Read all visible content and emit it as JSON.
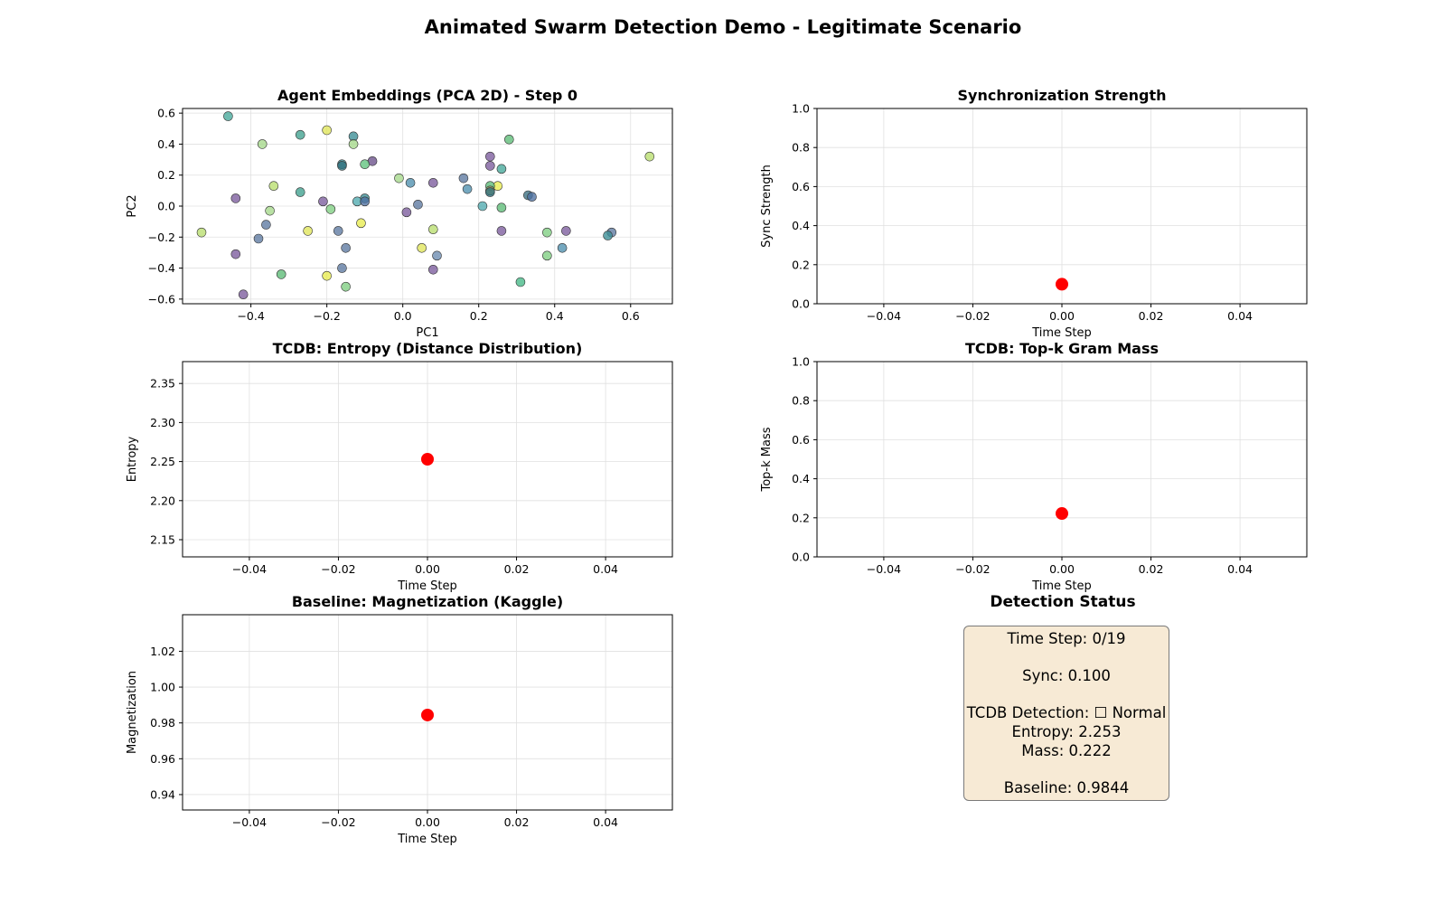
{
  "figure": {
    "suptitle": "Animated Swarm Detection Demo - Legitimate Scenario"
  },
  "status": {
    "title": "Detection Status",
    "lines": [
      "Time Step: 0/19",
      "Sync: 0.100",
      "TCDB Detection: ☐ Normal",
      "Entropy: 2.253",
      "Mass: 0.222",
      "Baseline: 0.9844"
    ]
  },
  "colors": {
    "marker": "#ff0000",
    "box_bg": "#f7ead5",
    "grid": "#e0e0e0"
  },
  "chart_data": [
    {
      "id": "embed",
      "type": "scatter",
      "title": "Agent Embeddings (PCA 2D) - Step 0",
      "xlabel": "PC1",
      "ylabel": "PC2",
      "xlim": [
        -0.58,
        0.71
      ],
      "ylim": [
        -0.63,
        0.63
      ],
      "xticks": [
        -0.4,
        -0.2,
        0.0,
        0.2,
        0.4,
        0.6
      ],
      "xtick_labels": [
        "−0.4",
        "−0.2",
        "0.0",
        "0.2",
        "0.4",
        "0.6"
      ],
      "yticks": [
        -0.6,
        -0.4,
        -0.2,
        0.0,
        0.2,
        0.4,
        0.6
      ],
      "ytick_labels": [
        "−0.6",
        "−0.4",
        "−0.2",
        "0.0",
        "0.2",
        "0.4",
        "0.6"
      ],
      "grid": true,
      "points": [
        {
          "x": -0.46,
          "y": 0.58,
          "c": "#45a89a"
        },
        {
          "x": -0.37,
          "y": 0.4,
          "c": "#a5d98a"
        },
        {
          "x": -0.27,
          "y": 0.46,
          "c": "#3fa08e"
        },
        {
          "x": -0.2,
          "y": 0.49,
          "c": "#e0e55a"
        },
        {
          "x": -0.13,
          "y": 0.45,
          "c": "#3a8d95"
        },
        {
          "x": -0.13,
          "y": 0.4,
          "c": "#a5d98a"
        },
        {
          "x": 0.28,
          "y": 0.43,
          "c": "#5cbb76"
        },
        {
          "x": 0.65,
          "y": 0.32,
          "c": "#b8de6e"
        },
        {
          "x": -0.08,
          "y": 0.29,
          "c": "#6a4f8a"
        },
        {
          "x": 0.23,
          "y": 0.32,
          "c": "#7b5b9c"
        },
        {
          "x": -0.1,
          "y": 0.27,
          "c": "#5fc27c"
        },
        {
          "x": -0.16,
          "y": 0.27,
          "c": "#3a8d95"
        },
        {
          "x": -0.16,
          "y": 0.26,
          "c": "#2f6f7c"
        },
        {
          "x": 0.23,
          "y": 0.26,
          "c": "#7b5b9c"
        },
        {
          "x": 0.26,
          "y": 0.24,
          "c": "#45a89a"
        },
        {
          "x": 0.16,
          "y": 0.18,
          "c": "#5c79a0"
        },
        {
          "x": -0.01,
          "y": 0.18,
          "c": "#a5d98a"
        },
        {
          "x": 0.08,
          "y": 0.15,
          "c": "#7b5b9c"
        },
        {
          "x": 0.02,
          "y": 0.15,
          "c": "#4e8fae"
        },
        {
          "x": -0.34,
          "y": 0.13,
          "c": "#b8de6e"
        },
        {
          "x": 0.25,
          "y": 0.13,
          "c": "#e8ec50"
        },
        {
          "x": 0.23,
          "y": 0.13,
          "c": "#5cbb76"
        },
        {
          "x": 0.17,
          "y": 0.11,
          "c": "#4e8fae"
        },
        {
          "x": 0.23,
          "y": 0.1,
          "c": "#a8a86a"
        },
        {
          "x": 0.23,
          "y": 0.09,
          "c": "#2f6f7c"
        },
        {
          "x": -0.27,
          "y": 0.09,
          "c": "#3fa08e"
        },
        {
          "x": 0.33,
          "y": 0.07,
          "c": "#3a6f82"
        },
        {
          "x": 0.34,
          "y": 0.06,
          "c": "#4d6fa0"
        },
        {
          "x": -0.44,
          "y": 0.05,
          "c": "#7b5b9c"
        },
        {
          "x": -0.1,
          "y": 0.05,
          "c": "#3a8d95"
        },
        {
          "x": -0.12,
          "y": 0.03,
          "c": "#4faab0"
        },
        {
          "x": -0.21,
          "y": 0.03,
          "c": "#7b5b9c"
        },
        {
          "x": -0.1,
          "y": 0.03,
          "c": "#4d6fa0"
        },
        {
          "x": 0.04,
          "y": 0.01,
          "c": "#5c79a0"
        },
        {
          "x": 0.21,
          "y": 0.0,
          "c": "#4faab0"
        },
        {
          "x": 0.26,
          "y": -0.01,
          "c": "#5cbb76"
        },
        {
          "x": -0.19,
          "y": -0.02,
          "c": "#7fce82"
        },
        {
          "x": -0.35,
          "y": -0.03,
          "c": "#a5d98a"
        },
        {
          "x": 0.01,
          "y": -0.04,
          "c": "#7b5b9c"
        },
        {
          "x": -0.11,
          "y": -0.11,
          "c": "#e8ec50"
        },
        {
          "x": -0.36,
          "y": -0.12,
          "c": "#5c79a0"
        },
        {
          "x": 0.08,
          "y": -0.15,
          "c": "#b8de6e"
        },
        {
          "x": -0.25,
          "y": -0.16,
          "c": "#e0e55a"
        },
        {
          "x": -0.17,
          "y": -0.16,
          "c": "#5c79a0"
        },
        {
          "x": 0.26,
          "y": -0.16,
          "c": "#7b5b9c"
        },
        {
          "x": 0.43,
          "y": -0.16,
          "c": "#7b5b9c"
        },
        {
          "x": 0.38,
          "y": -0.17,
          "c": "#7fce82"
        },
        {
          "x": 0.55,
          "y": -0.17,
          "c": "#5c79a0"
        },
        {
          "x": -0.53,
          "y": -0.17,
          "c": "#b8de6e"
        },
        {
          "x": 0.54,
          "y": -0.19,
          "c": "#3a8d95"
        },
        {
          "x": -0.38,
          "y": -0.21,
          "c": "#5c79a0"
        },
        {
          "x": 0.05,
          "y": -0.27,
          "c": "#e0e55a"
        },
        {
          "x": -0.15,
          "y": -0.27,
          "c": "#5c79a0"
        },
        {
          "x": 0.42,
          "y": -0.27,
          "c": "#4e8fae"
        },
        {
          "x": -0.44,
          "y": -0.31,
          "c": "#7b5b9c"
        },
        {
          "x": 0.09,
          "y": -0.32,
          "c": "#6a8ab0"
        },
        {
          "x": 0.38,
          "y": -0.32,
          "c": "#7fce82"
        },
        {
          "x": -0.16,
          "y": -0.4,
          "c": "#5c79a0"
        },
        {
          "x": 0.08,
          "y": -0.41,
          "c": "#7b5b9c"
        },
        {
          "x": -0.32,
          "y": -0.44,
          "c": "#5cbb76"
        },
        {
          "x": -0.2,
          "y": -0.45,
          "c": "#e8ec50"
        },
        {
          "x": 0.31,
          "y": -0.49,
          "c": "#45b886"
        },
        {
          "x": -0.15,
          "y": -0.52,
          "c": "#7fce82"
        },
        {
          "x": -0.42,
          "y": -0.57,
          "c": "#7b5b9c"
        }
      ]
    },
    {
      "id": "sync",
      "type": "scatter",
      "title": "Synchronization Strength",
      "xlabel": "Time Step",
      "ylabel": "Sync Strength",
      "xlim": [
        -0.055,
        0.055
      ],
      "ylim": [
        0,
        1
      ],
      "xticks": [
        -0.04,
        -0.02,
        0.0,
        0.02,
        0.04
      ],
      "xtick_labels": [
        "−0.04",
        "−0.02",
        "0.00",
        "0.02",
        "0.04"
      ],
      "yticks": [
        0,
        0.2,
        0.4,
        0.6,
        0.8,
        1.0
      ],
      "ytick_labels": [
        "0.0",
        "0.2",
        "0.4",
        "0.6",
        "0.8",
        "1.0"
      ],
      "grid": true,
      "points": [
        {
          "x": 0,
          "y": 0.1,
          "c": "#ff0000"
        }
      ]
    },
    {
      "id": "entropy",
      "type": "scatter",
      "title": "TCDB: Entropy (Distance Distribution)",
      "xlabel": "Time Step",
      "ylabel": "Entropy",
      "xlim": [
        -0.055,
        0.055
      ],
      "ylim": [
        2.128,
        2.378
      ],
      "xticks": [
        -0.04,
        -0.02,
        0.0,
        0.02,
        0.04
      ],
      "xtick_labels": [
        "−0.04",
        "−0.02",
        "0.00",
        "0.02",
        "0.04"
      ],
      "yticks": [
        2.15,
        2.2,
        2.25,
        2.3,
        2.35
      ],
      "ytick_labels": [
        "2.15",
        "2.20",
        "2.25",
        "2.30",
        "2.35"
      ],
      "grid": true,
      "points": [
        {
          "x": 0,
          "y": 2.253,
          "c": "#ff0000"
        }
      ]
    },
    {
      "id": "mass",
      "type": "scatter",
      "title": "TCDB: Top-k Gram Mass",
      "xlabel": "Time Step",
      "ylabel": "Top-k Mass",
      "xlim": [
        -0.055,
        0.055
      ],
      "ylim": [
        0,
        1
      ],
      "xticks": [
        -0.04,
        -0.02,
        0.0,
        0.02,
        0.04
      ],
      "xtick_labels": [
        "−0.04",
        "−0.02",
        "0.00",
        "0.02",
        "0.04"
      ],
      "yticks": [
        0,
        0.2,
        0.4,
        0.6,
        0.8,
        1.0
      ],
      "ytick_labels": [
        "0.0",
        "0.2",
        "0.4",
        "0.6",
        "0.8",
        "1.0"
      ],
      "grid": true,
      "points": [
        {
          "x": 0,
          "y": 0.222,
          "c": "#ff0000"
        }
      ]
    },
    {
      "id": "magnet",
      "type": "scatter",
      "title": "Baseline: Magnetization (Kaggle)",
      "xlabel": "Time Step",
      "ylabel": "Magnetization",
      "xlim": [
        -0.055,
        0.055
      ],
      "ylim": [
        0.9314,
        1.0404
      ],
      "xticks": [
        -0.04,
        -0.02,
        0.0,
        0.02,
        0.04
      ],
      "xtick_labels": [
        "−0.04",
        "−0.02",
        "0.00",
        "0.02",
        "0.04"
      ],
      "yticks": [
        0.94,
        0.96,
        0.98,
        1.0,
        1.02
      ],
      "ytick_labels": [
        "0.94",
        "0.96",
        "0.98",
        "1.00",
        "1.02"
      ],
      "grid": true,
      "points": [
        {
          "x": 0,
          "y": 0.9844,
          "c": "#ff0000"
        }
      ]
    }
  ]
}
